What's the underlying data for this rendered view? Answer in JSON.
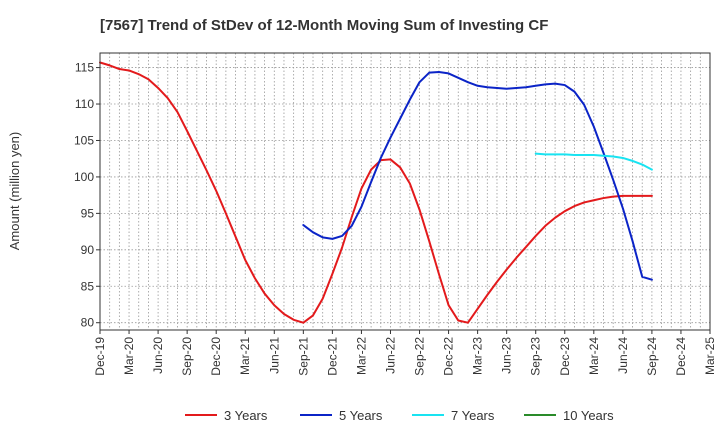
{
  "chart_data": {
    "type": "line",
    "title": "[7567]  Trend of StDev of 12-Month Moving Sum of Investing CF",
    "xlabel": "",
    "ylabel": "Amount (million yen)",
    "ylim": [
      79,
      117
    ],
    "yticks": [
      80,
      85,
      90,
      95,
      100,
      105,
      110,
      115
    ],
    "x_range": [
      "Dec-19",
      "Mar-25"
    ],
    "x_ticks": [
      "Dec-19",
      "Mar-20",
      "Jun-20",
      "Sep-20",
      "Dec-20",
      "Mar-21",
      "Jun-21",
      "Sep-21",
      "Dec-21",
      "Mar-22",
      "Jun-22",
      "Sep-22",
      "Dec-22",
      "Mar-23",
      "Jun-23",
      "Sep-23",
      "Dec-23",
      "Mar-24",
      "Jun-24",
      "Sep-24",
      "Dec-24",
      "Mar-25"
    ],
    "grid": true,
    "legend_position": "bottom",
    "series": [
      {
        "name": "3 Years",
        "color": "#e31a1c",
        "x": [
          "Dec-19",
          "Jan-20",
          "Feb-20",
          "Mar-20",
          "Apr-20",
          "May-20",
          "Jun-20",
          "Jul-20",
          "Aug-20",
          "Sep-20",
          "Oct-20",
          "Nov-20",
          "Dec-20",
          "Jan-21",
          "Feb-21",
          "Mar-21",
          "Apr-21",
          "May-21",
          "Jun-21",
          "Jul-21",
          "Aug-21",
          "Sep-21",
          "Oct-21",
          "Nov-21",
          "Dec-21",
          "Jan-22",
          "Feb-22",
          "Mar-22",
          "Apr-22",
          "May-22",
          "Jun-22",
          "Jul-22",
          "Aug-22",
          "Sep-22",
          "Oct-22",
          "Nov-22",
          "Dec-22",
          "Jan-23",
          "Feb-23",
          "Mar-23",
          "Apr-23",
          "May-23",
          "Jun-23",
          "Jul-23",
          "Aug-23",
          "Sep-23",
          "Oct-23",
          "Nov-23",
          "Dec-23",
          "Jan-24",
          "Feb-24",
          "Mar-24",
          "Apr-24",
          "May-24",
          "Jun-24",
          "Jul-24",
          "Aug-24",
          "Sep-24"
        ],
        "values": [
          115.7,
          115.3,
          114.8,
          114.6,
          114.1,
          113.4,
          112.2,
          110.8,
          108.9,
          106.3,
          103.6,
          100.9,
          98.1,
          95.0,
          91.8,
          88.6,
          86.1,
          84.0,
          82.4,
          81.2,
          80.4,
          80.0,
          81.0,
          83.3,
          86.7,
          90.3,
          94.5,
          98.4,
          101.0,
          102.3,
          102.4,
          101.3,
          99.1,
          95.5,
          91.2,
          86.7,
          82.4,
          80.3,
          80.0,
          81.9,
          83.8,
          85.6,
          87.3,
          88.9,
          90.4,
          91.9,
          93.3,
          94.4,
          95.3,
          96.0,
          96.5,
          96.8,
          97.1,
          97.3,
          97.4,
          97.4,
          97.4,
          97.4
        ]
      },
      {
        "name": "5 Years",
        "color": "#0b24c7",
        "x": [
          "Sep-21",
          "Oct-21",
          "Nov-21",
          "Dec-21",
          "Jan-22",
          "Feb-22",
          "Mar-22",
          "Apr-22",
          "May-22",
          "Jun-22",
          "Jul-22",
          "Aug-22",
          "Sep-22",
          "Oct-22",
          "Nov-22",
          "Dec-22",
          "Jan-23",
          "Feb-23",
          "Mar-23",
          "Apr-23",
          "May-23",
          "Jun-23",
          "Jul-23",
          "Aug-23",
          "Sep-23",
          "Oct-23",
          "Nov-23",
          "Dec-23",
          "Jan-24",
          "Feb-24",
          "Mar-24",
          "Apr-24",
          "May-24",
          "Jun-24",
          "Jul-24",
          "Aug-24",
          "Sep-24"
        ],
        "values": [
          93.4,
          92.4,
          91.7,
          91.5,
          91.9,
          93.3,
          95.9,
          99.3,
          102.6,
          105.4,
          108.0,
          110.6,
          113.0,
          114.3,
          114.4,
          114.2,
          113.6,
          113.0,
          112.5,
          112.3,
          112.2,
          112.1,
          112.2,
          112.3,
          112.5,
          112.7,
          112.8,
          112.6,
          111.7,
          109.9,
          106.9,
          103.3,
          99.6,
          95.7,
          91.2,
          86.3,
          85.9
        ]
      },
      {
        "name": "7 Years",
        "color": "#19e3f1",
        "x": [
          "Sep-23",
          "Oct-23",
          "Nov-23",
          "Dec-23",
          "Jan-24",
          "Feb-24",
          "Mar-24",
          "Apr-24",
          "May-24",
          "Jun-24",
          "Jul-24",
          "Aug-24",
          "Sep-24"
        ],
        "values": [
          103.2,
          103.1,
          103.1,
          103.1,
          103.0,
          103.0,
          103.0,
          102.9,
          102.8,
          102.6,
          102.2,
          101.7,
          101.0
        ]
      },
      {
        "name": "10 Years",
        "color": "#2a8b2a",
        "x": [],
        "values": []
      }
    ]
  }
}
